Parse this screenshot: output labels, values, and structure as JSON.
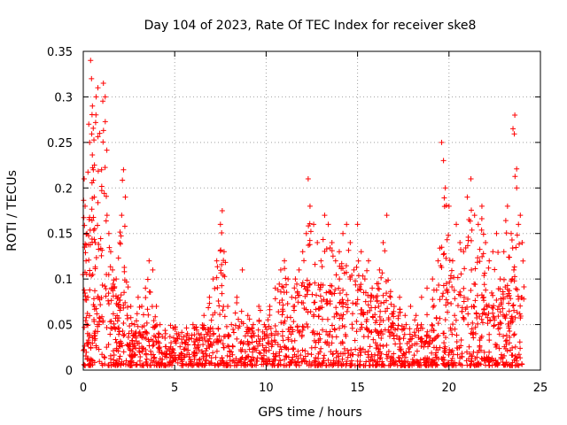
{
  "chart_data": {
    "type": "scatter",
    "title": "Day 104 of 2023, Rate Of TEC Index for receiver ske8",
    "xlabel": "GPS time / hours",
    "ylabel": "ROTI / TECUs",
    "xlim": [
      0,
      25
    ],
    "ylim": [
      0,
      0.35
    ],
    "xticks": [
      0,
      5,
      10,
      15,
      20,
      25
    ],
    "yticks": [
      0,
      0.05,
      0.1,
      0.15,
      0.2,
      0.25,
      0.3,
      0.35
    ],
    "ytick_labels": [
      "0",
      "0.05",
      "0.1",
      "0.15",
      "0.2",
      "0.25",
      "0.3",
      "0.35"
    ],
    "grid": true,
    "marker": "+",
    "color": "#ff0000",
    "series": [
      {
        "name": "ROTI",
        "x": [
          0.05,
          0.1,
          0.15,
          0.2,
          0.25,
          0.3,
          0.35,
          0.4,
          0.45,
          0.5,
          0.55,
          0.6,
          0.65,
          0.7,
          0.8,
          0.9,
          1.0,
          1.1,
          1.2,
          1.3,
          1.4,
          1.5,
          1.6,
          1.7,
          1.8,
          1.9,
          2.0,
          2.1,
          2.2,
          2.3,
          2.4,
          2.6,
          2.8,
          3.0,
          3.2,
          3.4,
          3.6,
          3.8,
          4.0,
          4.2,
          4.5,
          4.8,
          5.1,
          5.4,
          5.7,
          6.0,
          6.3,
          6.6,
          6.9,
          7.1,
          7.3,
          7.5,
          7.6,
          7.7,
          7.9,
          8.1,
          8.4,
          8.7,
          9.0,
          9.3,
          9.6,
          9.9,
          10.2,
          10.5,
          10.8,
          11.0,
          11.2,
          11.4,
          11.6,
          11.8,
          12.0,
          12.2,
          12.3,
          12.4,
          12.6,
          12.8,
          13.0,
          13.2,
          13.4,
          13.6,
          13.8,
          14.0,
          14.2,
          14.4,
          14.6,
          14.8,
          15.0,
          15.2,
          15.4,
          15.6,
          15.8,
          16.0,
          16.2,
          16.4,
          16.6,
          16.8,
          17.0,
          17.3,
          17.6,
          17.9,
          18.2,
          18.5,
          18.8,
          19.1,
          19.4,
          19.6,
          19.7,
          19.8,
          20.0,
          20.2,
          20.4,
          20.6,
          20.8,
          21.0,
          21.2,
          21.4,
          21.6,
          21.8,
          22.0,
          22.2,
          22.4,
          22.6,
          22.8,
          23.0,
          23.2,
          23.4,
          23.5,
          23.6,
          23.7,
          23.8,
          23.9,
          24.0
        ],
        "y": [
          0.21,
          0.18,
          0.12,
          0.15,
          0.08,
          0.27,
          0.25,
          0.34,
          0.32,
          0.29,
          0.22,
          0.19,
          0.14,
          0.3,
          0.31,
          0.26,
          0.22,
          0.315,
          0.3,
          0.17,
          0.15,
          0.13,
          0.11,
          0.09,
          0.1,
          0.08,
          0.14,
          0.17,
          0.22,
          0.19,
          0.06,
          0.07,
          0.05,
          0.08,
          0.07,
          0.09,
          0.12,
          0.11,
          0.07,
          0.05,
          0.04,
          0.03,
          0.04,
          0.03,
          0.04,
          0.05,
          0.04,
          0.06,
          0.08,
          0.1,
          0.12,
          0.16,
          0.175,
          0.13,
          0.07,
          0.05,
          0.08,
          0.11,
          0.06,
          0.05,
          0.07,
          0.05,
          0.07,
          0.09,
          0.11,
          0.12,
          0.1,
          0.08,
          0.1,
          0.11,
          0.13,
          0.15,
          0.21,
          0.18,
          0.16,
          0.14,
          0.12,
          0.17,
          0.16,
          0.14,
          0.12,
          0.13,
          0.15,
          0.16,
          0.14,
          0.11,
          0.16,
          0.13,
          0.1,
          0.12,
          0.09,
          0.08,
          0.11,
          0.14,
          0.17,
          0.08,
          0.07,
          0.08,
          0.06,
          0.07,
          0.06,
          0.08,
          0.09,
          0.1,
          0.12,
          0.25,
          0.23,
          0.2,
          0.18,
          0.12,
          0.16,
          0.14,
          0.13,
          0.19,
          0.21,
          0.17,
          0.16,
          0.18,
          0.14,
          0.12,
          0.13,
          0.15,
          0.1,
          0.13,
          0.18,
          0.15,
          0.265,
          0.28,
          0.2,
          0.16,
          0.17,
          0.14
        ]
      }
    ]
  }
}
